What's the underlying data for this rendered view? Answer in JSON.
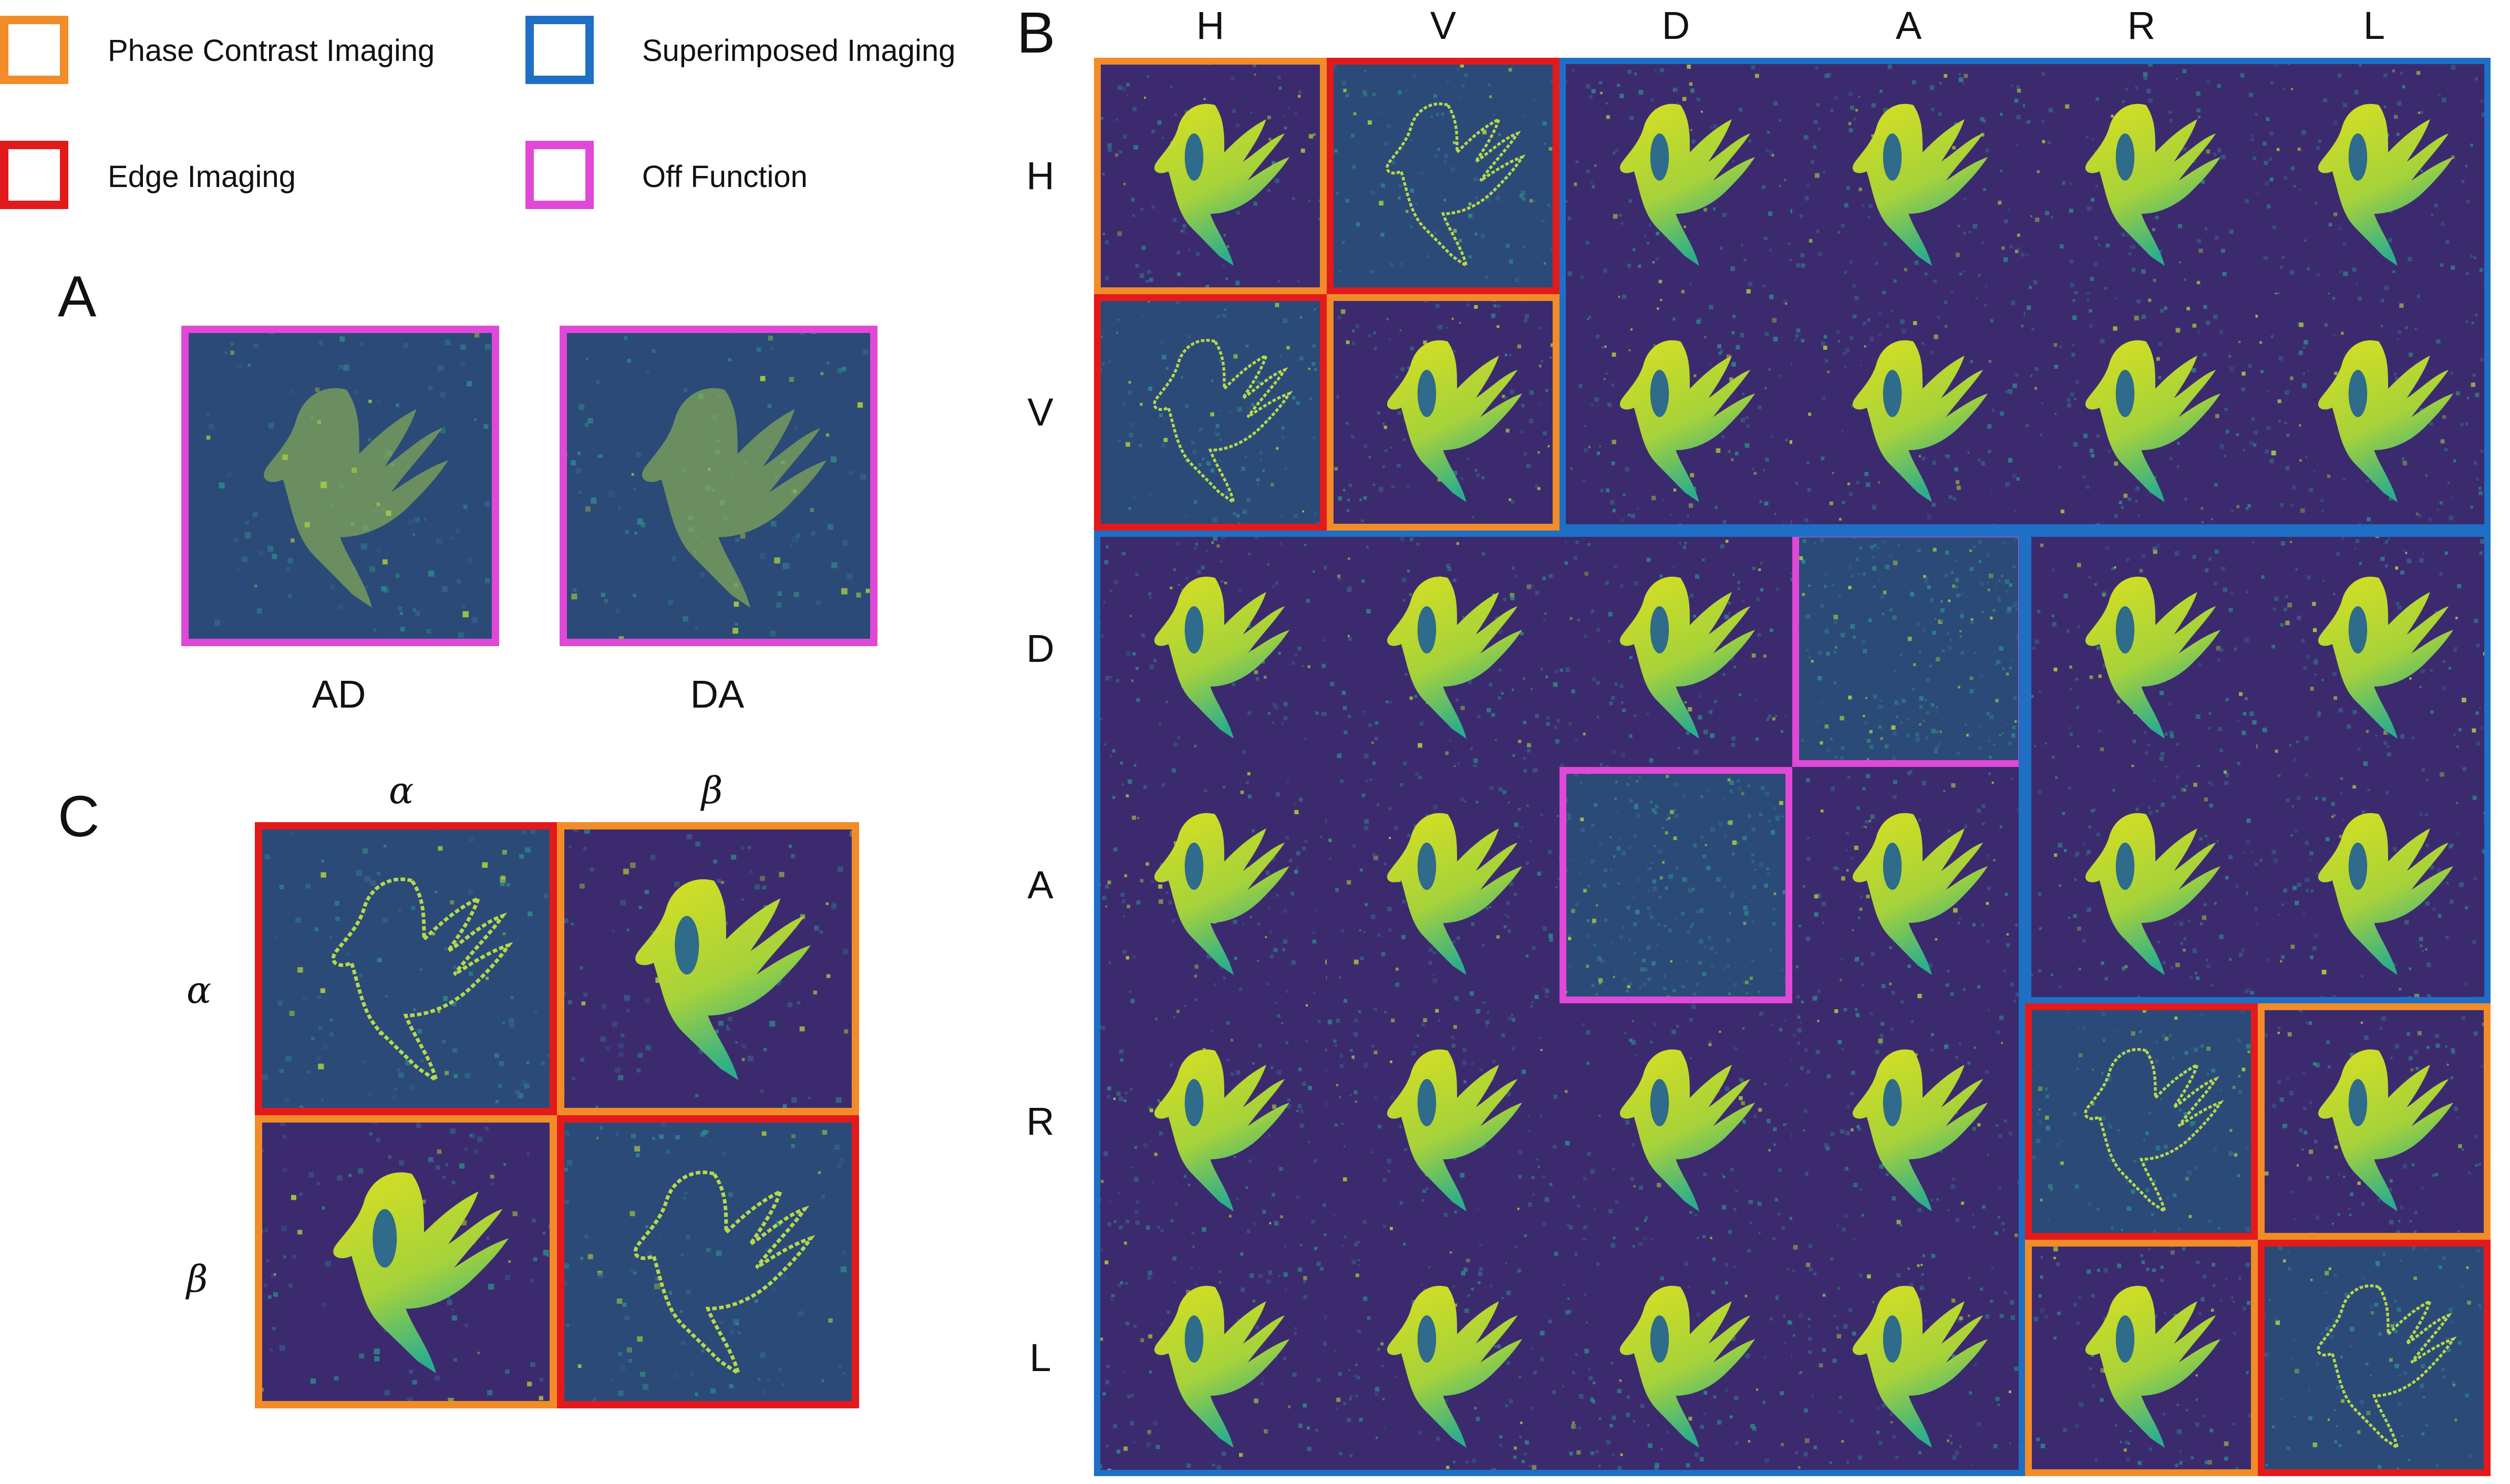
{
  "colors": {
    "phase": "#f28c28",
    "edge": "#e31a1c",
    "superimposed": "#1f6fc5",
    "off": "#e048d8",
    "bg_dark": "#3b2b6e",
    "bg_noise": "#2a6a80",
    "bird_yellow": "#d9e021",
    "bird_teal": "#2cae8c"
  },
  "legend": [
    {
      "key": "phase",
      "label": "Phase Contrast Imaging",
      "color": "#f28c28"
    },
    {
      "key": "superimposed",
      "label": "Superimposed Imaging",
      "color": "#1f6fc5"
    },
    {
      "key": "edge",
      "label": "Edge Imaging",
      "color": "#e31a1c"
    },
    {
      "key": "off",
      "label": "Off Function",
      "color": "#e048d8"
    }
  ],
  "panelA": {
    "letter": "A",
    "images": [
      {
        "label": "AD",
        "kind": "off"
      },
      {
        "label": "DA",
        "kind": "off"
      }
    ]
  },
  "panelB": {
    "letter": "B",
    "columns": [
      "H",
      "V",
      "D",
      "A",
      "R",
      "L"
    ],
    "rows": [
      "H",
      "V",
      "D",
      "A",
      "R",
      "L"
    ],
    "grid": [
      [
        "phase",
        "edge",
        "super",
        "super",
        "super",
        "super"
      ],
      [
        "edge",
        "phase",
        "super",
        "super",
        "super",
        "super"
      ],
      [
        "super",
        "super",
        "super",
        "noise",
        "super",
        "super"
      ],
      [
        "super",
        "super",
        "noise",
        "super",
        "super",
        "super"
      ],
      [
        "super",
        "super",
        "super",
        "super",
        "edge",
        "phase"
      ],
      [
        "super",
        "super",
        "super",
        "super",
        "phase",
        "edge"
      ]
    ]
  },
  "panelC": {
    "letter": "C",
    "columns": [
      "α",
      "β"
    ],
    "rows": [
      "α",
      "β"
    ],
    "grid": [
      [
        "edge",
        "phase"
      ],
      [
        "phase",
        "edge"
      ]
    ]
  }
}
